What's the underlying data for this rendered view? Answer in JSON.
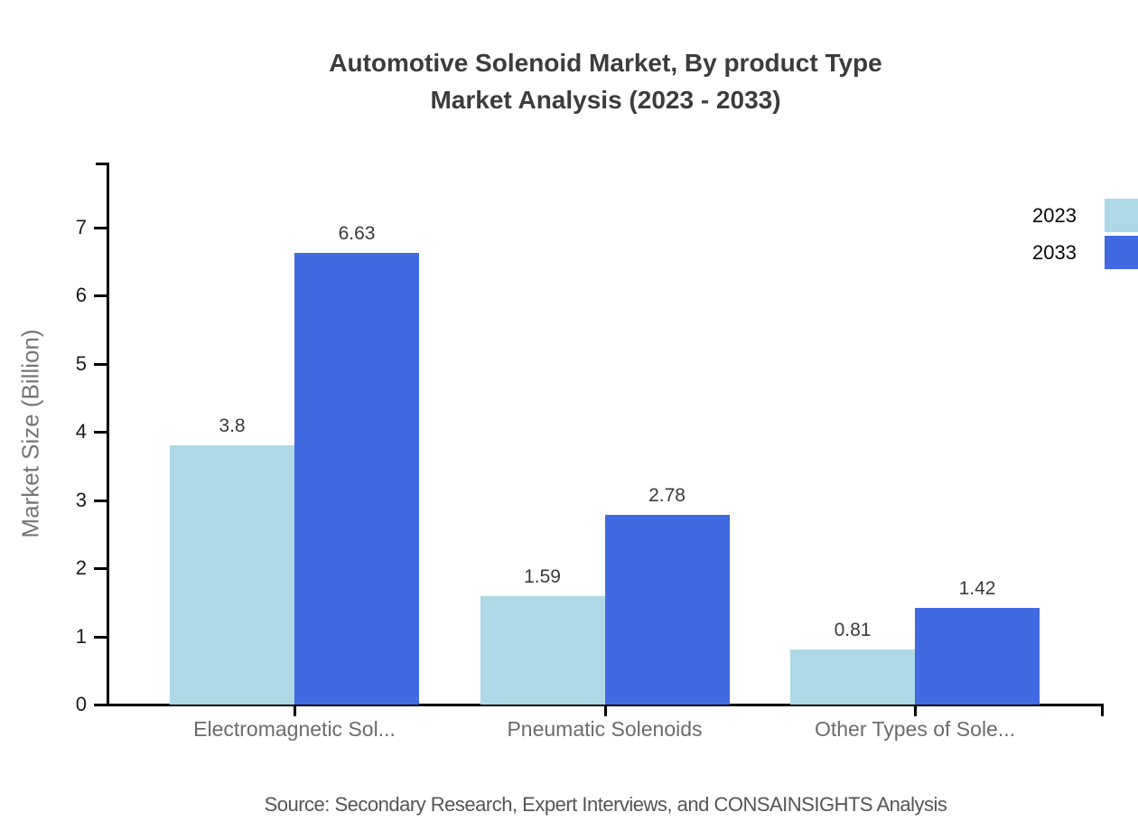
{
  "title": {
    "line1": "Automotive Solenoid Market, By product Type",
    "line2": "Market Analysis (2023 - 2033)"
  },
  "y_axis": {
    "label": "Market Size (Billion)",
    "ticks": [
      0,
      1,
      2,
      3,
      4,
      5,
      6,
      7
    ]
  },
  "legend": {
    "items": [
      {
        "label": "2023",
        "color": "#add8e6"
      },
      {
        "label": "2033",
        "color": "#4169e1"
      }
    ]
  },
  "source": {
    "text": "Source: Secondary Research, Expert Interviews, and CONSAINSIGHTS Analysis"
  },
  "colors": {
    "series_2023": "#add8e6",
    "series_2033": "#4169e1",
    "axis": "#000000",
    "title_text": "#3c3c3c",
    "category_text": "#6b6b6b",
    "value_text": "#3a3a3a",
    "tick_text": "#1a1a1a",
    "ylabel_text": "#757575",
    "source_text": "#555555"
  },
  "chart_data": {
    "type": "bar",
    "title": "Automotive Solenoid Market, By product Type Market Analysis (2023 - 2033)",
    "categories": [
      "Electromagnetic Sol...",
      "Pneumatic Solenoids",
      "Other Types of Sole..."
    ],
    "series": [
      {
        "name": "2023",
        "color": "#add8e6",
        "values": [
          3.8,
          1.59,
          0.81
        ]
      },
      {
        "name": "2033",
        "color": "#4169e1",
        "values": [
          6.63,
          2.78,
          1.42
        ]
      }
    ],
    "xlabel": "",
    "ylabel": "Market Size (Billion)",
    "ylim": [
      0,
      7.95
    ],
    "ytick_step": 1,
    "grid": false,
    "bar_value_labels": true,
    "legend_position": "top-right"
  }
}
